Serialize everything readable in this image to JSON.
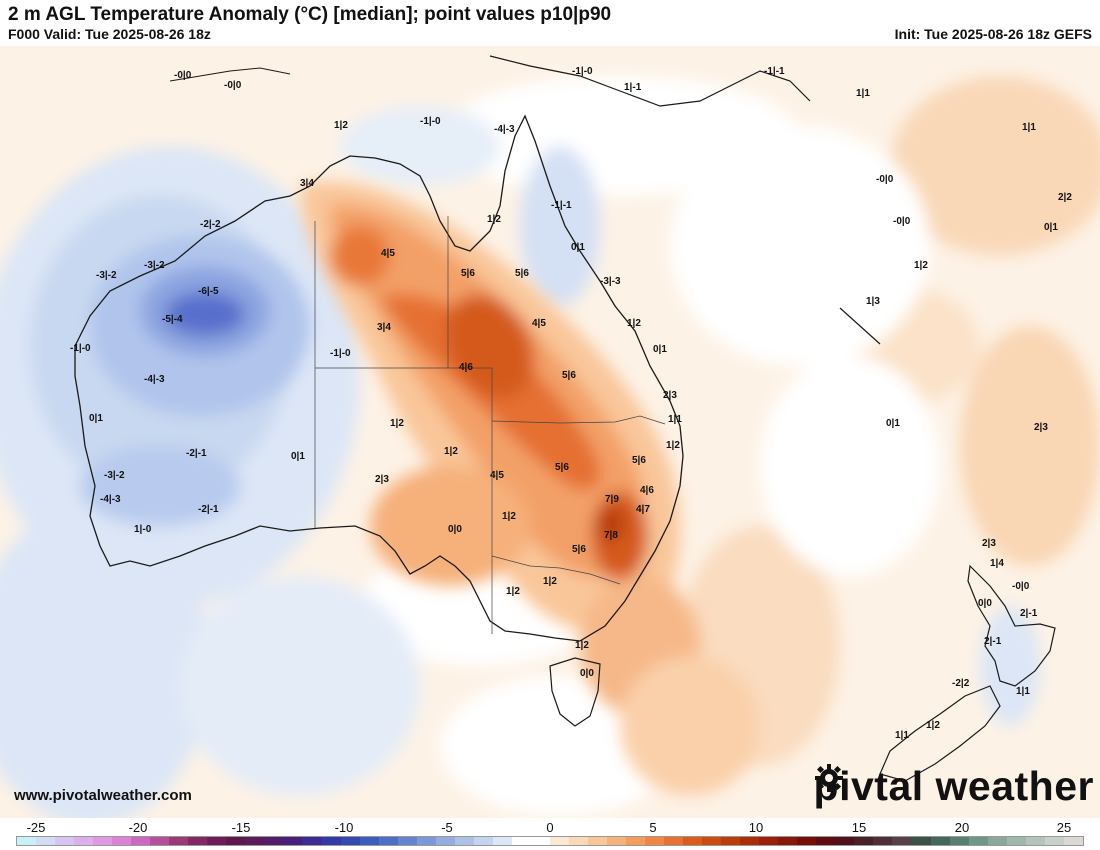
{
  "header": {
    "title": "2 m AGL Temperature Anomaly (°C) [median]; point values p10|p90",
    "valid": "F000 Valid: Tue 2025-08-26 18z",
    "init": "Init: Tue 2025-08-26 18z GEFS"
  },
  "footer": {
    "website": "www.pivotalweather.com",
    "brand_left": "piv",
    "brand_right": "tal weather"
  },
  "colorbar": {
    "ticks": [
      "-25",
      "-20",
      "-15",
      "-10",
      "-5",
      "0",
      "5",
      "10",
      "15",
      "20",
      "25"
    ],
    "colors": [
      "#c8f0f8",
      "#d4dcf4",
      "#d8c4f0",
      "#dcb0ec",
      "#e098e4",
      "#dc80d8",
      "#cc68c4",
      "#b4509c",
      "#9c3878",
      "#842864",
      "#701c58",
      "#60184c",
      "#5c1c5c",
      "#501c6c",
      "#48207c",
      "#3c2c94",
      "#3438a8",
      "#3448b4",
      "#3c5cc0",
      "#4c70c8",
      "#6484d0",
      "#7c98d8",
      "#94ace0",
      "#acc0e8",
      "#c4d4f0",
      "#dce6f6",
      "#ffffff",
      "#ffffff",
      "#fde8d4",
      "#fbd8b8",
      "#f9c69a",
      "#f7b27c",
      "#f49c5e",
      "#f08642",
      "#e87030",
      "#dc5c1c",
      "#cc4c10",
      "#bc3c0c",
      "#ac2c08",
      "#9c2008",
      "#881808",
      "#741008",
      "#600c10",
      "#50101c",
      "#482028",
      "#503038",
      "#584048",
      "#3c5048",
      "#44685c",
      "#588070",
      "#709888",
      "#88a89c",
      "#a0b8ac",
      "#b4c4bc",
      "#c8d0cc",
      "#dcd8d4"
    ]
  },
  "points": [
    {
      "id": "p01",
      "text": "-0|0"
    },
    {
      "id": "p02",
      "text": "-0|0"
    },
    {
      "id": "p03",
      "text": "-1|-0"
    },
    {
      "id": "p04",
      "text": "1|-1"
    },
    {
      "id": "p05",
      "text": "-1|-1"
    },
    {
      "id": "p06",
      "text": "1|1"
    },
    {
      "id": "p07",
      "text": "1|1"
    },
    {
      "id": "p08",
      "text": "1|2"
    },
    {
      "id": "p09",
      "text": "-1|-0"
    },
    {
      "id": "p10",
      "text": "-4|-3"
    },
    {
      "id": "p11",
      "text": "-0|0"
    },
    {
      "id": "p12",
      "text": "2|2"
    },
    {
      "id": "p13",
      "text": "3|4"
    },
    {
      "id": "p14",
      "text": "1|2"
    },
    {
      "id": "p15",
      "text": "-1|-1"
    },
    {
      "id": "p16",
      "text": "-0|0"
    },
    {
      "id": "p17",
      "text": "0|1"
    },
    {
      "id": "p18",
      "text": "-2|-2"
    },
    {
      "id": "p19",
      "text": "0|1"
    },
    {
      "id": "p20",
      "text": "4|5"
    },
    {
      "id": "p21",
      "text": "5|6"
    },
    {
      "id": "p22",
      "text": "5|6"
    },
    {
      "id": "p23",
      "text": "1|2"
    },
    {
      "id": "p24",
      "text": "-3|-2"
    },
    {
      "id": "p25",
      "text": "-3|-2"
    },
    {
      "id": "p26",
      "text": "-3|-3"
    },
    {
      "id": "p27",
      "text": "-6|-5"
    },
    {
      "id": "p28",
      "text": "1|3"
    },
    {
      "id": "p29",
      "text": "-5|-4"
    },
    {
      "id": "p30",
      "text": "3|4"
    },
    {
      "id": "p31",
      "text": "4|5"
    },
    {
      "id": "p32",
      "text": "1|2"
    },
    {
      "id": "p33",
      "text": "-1|-0"
    },
    {
      "id": "p34",
      "text": "-1|-0"
    },
    {
      "id": "p35",
      "text": "0|1"
    },
    {
      "id": "p36",
      "text": "-4|-3"
    },
    {
      "id": "p37",
      "text": "4|6"
    },
    {
      "id": "p38",
      "text": "5|6"
    },
    {
      "id": "p39",
      "text": "2|3"
    },
    {
      "id": "p40",
      "text": "0|1"
    },
    {
      "id": "p41",
      "text": "1|2"
    },
    {
      "id": "p42",
      "text": "1|1"
    },
    {
      "id": "p43",
      "text": "0|1"
    },
    {
      "id": "p44",
      "text": "2|3"
    },
    {
      "id": "p45",
      "text": "1|2"
    },
    {
      "id": "p46",
      "text": "-2|-1"
    },
    {
      "id": "p47",
      "text": "0|1"
    },
    {
      "id": "p48",
      "text": "1|2"
    },
    {
      "id": "p49",
      "text": "5|6"
    },
    {
      "id": "p50",
      "text": "5|6"
    },
    {
      "id": "p51",
      "text": "4|5"
    },
    {
      "id": "p52",
      "text": "-3|-2"
    },
    {
      "id": "p53",
      "text": "2|3"
    },
    {
      "id": "p54",
      "text": "4|6"
    },
    {
      "id": "p55",
      "text": "-4|-3"
    },
    {
      "id": "p56",
      "text": "7|9"
    },
    {
      "id": "p57",
      "text": "4|7"
    },
    {
      "id": "p58",
      "text": "2|-1"
    },
    {
      "id": "p59",
      "text": "1|2"
    },
    {
      "id": "p60",
      "text": "0|0"
    },
    {
      "id": "p61",
      "text": "-2|-1"
    },
    {
      "id": "p62",
      "text": "7|8"
    },
    {
      "id": "p63",
      "text": "2|3"
    },
    {
      "id": "p64",
      "text": "5|6"
    },
    {
      "id": "p65",
      "text": "1|4"
    },
    {
      "id": "p66",
      "text": "1|2"
    },
    {
      "id": "p67",
      "text": "-0|0"
    },
    {
      "id": "p68",
      "text": "1|2"
    },
    {
      "id": "p69",
      "text": "0|0"
    },
    {
      "id": "p70",
      "text": "2|-1"
    },
    {
      "id": "p71",
      "text": "1|2"
    },
    {
      "id": "p72",
      "text": "1|1"
    },
    {
      "id": "p73",
      "text": "0|0"
    },
    {
      "id": "p74",
      "text": "-2|2"
    },
    {
      "id": "p75",
      "text": "1|2"
    },
    {
      "id": "p76",
      "text": "1|1"
    },
    {
      "id": "p77",
      "text": "1|-0"
    }
  ]
}
